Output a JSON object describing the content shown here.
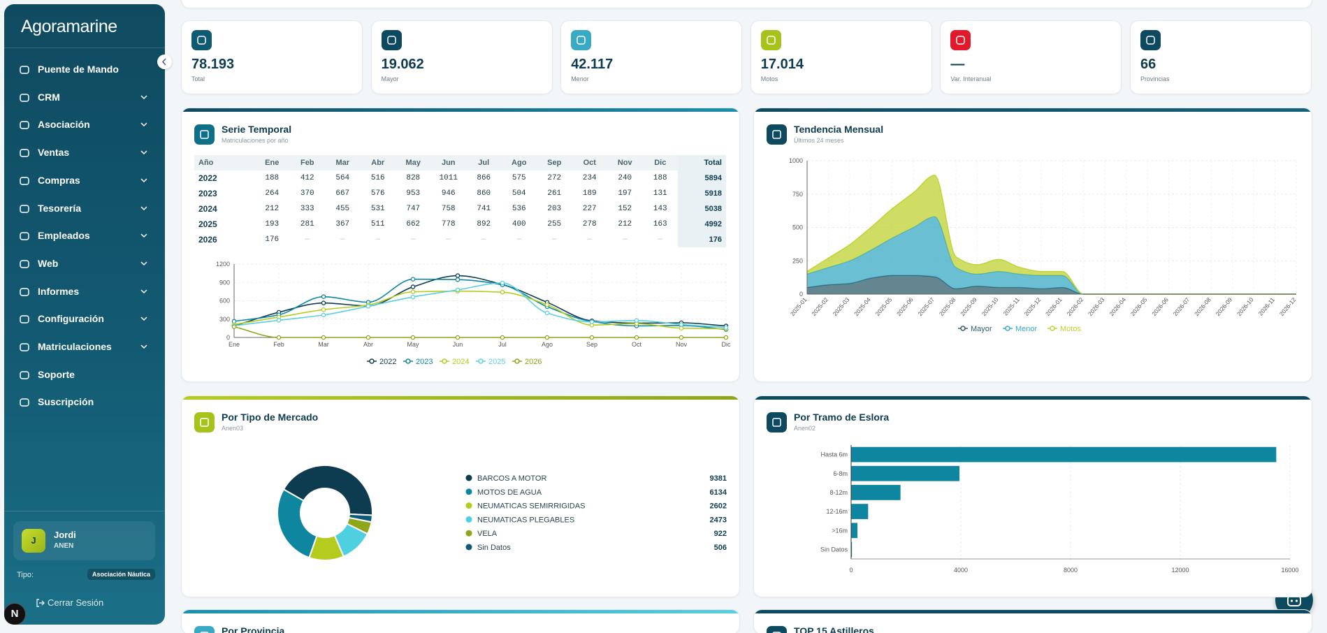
{
  "sidebar": {
    "brand": "Agoramarine",
    "nav": [
      {
        "label": "Puente de Mando",
        "expandable": false
      },
      {
        "label": "CRM",
        "expandable": true
      },
      {
        "label": "Asociación",
        "expandable": true
      },
      {
        "label": "Ventas",
        "expandable": true
      },
      {
        "label": "Compras",
        "expandable": true
      },
      {
        "label": "Tesorería",
        "expandable": true
      },
      {
        "label": "Empleados",
        "expandable": true
      },
      {
        "label": "Web",
        "expandable": true
      },
      {
        "label": "Informes",
        "expandable": true
      },
      {
        "label": "Configuración",
        "expandable": true
      },
      {
        "label": "Matriculaciones",
        "expandable": true
      },
      {
        "label": "Soporte",
        "expandable": false
      },
      {
        "label": "Suscripción",
        "expandable": false
      }
    ],
    "user": {
      "initial": "J",
      "name": "Jordi",
      "org": "ANEN"
    },
    "tipo_label": "Tipo:",
    "tipo": "Asociación Náutica",
    "logout": "Cerrar Sesión",
    "badge": "N"
  },
  "stats": [
    {
      "value": "78.193",
      "label": "Total",
      "color": "#0e5a70"
    },
    {
      "value": "19.062",
      "label": "Mayor",
      "color": "#0d4a5f"
    },
    {
      "value": "42.117",
      "label": "Menor",
      "color": "#3aa9c4"
    },
    {
      "value": "17.014",
      "label": "Motos",
      "color": "#a8c21c"
    },
    {
      "value": "—",
      "label": "Var. Interanual",
      "color": "#e0192b"
    },
    {
      "value": "66",
      "label": "Provincias",
      "color": "#0d4a5f"
    }
  ],
  "panels": {
    "serie_temporal": {
      "title": "Serie Temporal",
      "subtitle": "Matriculaciones por año",
      "table": {
        "header": [
          "Año",
          "Ene",
          "Feb",
          "Mar",
          "Abr",
          "May",
          "Jun",
          "Jul",
          "Ago",
          "Sep",
          "Oct",
          "Nov",
          "Dic",
          "Total"
        ],
        "rows": [
          [
            2022,
            188,
            412,
            564,
            516,
            828,
            1011,
            866,
            575,
            272,
            234,
            240,
            188,
            5894
          ],
          [
            2023,
            264,
            370,
            667,
            576,
            953,
            946,
            860,
            504,
            261,
            189,
            197,
            131,
            5918
          ],
          [
            2024,
            212,
            333,
            455,
            531,
            747,
            758,
            741,
            536,
            203,
            227,
            152,
            143,
            5038
          ],
          [
            2025,
            193,
            281,
            367,
            511,
            662,
            778,
            892,
            400,
            255,
            278,
            212,
            163,
            4992
          ],
          [
            2026,
            176,
            "—",
            "—",
            "—",
            "—",
            "—",
            "—",
            "—",
            "—",
            "—",
            "—",
            "—",
            176
          ]
        ]
      },
      "chart": {
        "type": "line",
        "categories": [
          "Ene",
          "Feb",
          "Mar",
          "Abr",
          "May",
          "Jun",
          "Jul",
          "Ago",
          "Sep",
          "Oct",
          "Nov",
          "Dic"
        ],
        "ylim": [
          0,
          1200
        ],
        "yticks": [
          0,
          300,
          600,
          900,
          {
            "value": 1200,
            "label": "1200"
          }
        ],
        "grid": true,
        "series": [
          {
            "name": "2022",
            "color": "#0d3b4f",
            "values": [
              188,
              412,
              564,
              516,
              828,
              1011,
              866,
              575,
              272,
              234,
              240,
              188
            ]
          },
          {
            "name": "2023",
            "color": "#0e86a0",
            "values": [
              264,
              370,
              667,
              576,
              953,
              946,
              860,
              504,
              261,
              189,
              197,
              131
            ]
          },
          {
            "name": "2024",
            "color": "#b5cc1f",
            "values": [
              212,
              333,
              455,
              531,
              747,
              758,
              741,
              536,
              203,
              227,
              152,
              143
            ]
          },
          {
            "name": "2025",
            "color": "#5bcfe0",
            "values": [
              193,
              281,
              367,
              511,
              662,
              778,
              892,
              400,
              255,
              278,
              212,
              163
            ]
          },
          {
            "name": "2026",
            "color": "#8da61a",
            "values": [
              176,
              0,
              0,
              0,
              0,
              0,
              0,
              0,
              0,
              0,
              0,
              0
            ]
          }
        ]
      }
    },
    "tendencia_mensual": {
      "title": "Tendencia Mensual",
      "subtitle": "Últimos 24 meses",
      "chart": {
        "type": "area",
        "stacked": true,
        "categories": [
          "2025-01",
          "2025-02",
          "2025-03",
          "2025-04",
          "2025-05",
          "2025-06",
          "2025-07",
          "2025-08",
          "2025-09",
          "2025-10",
          "2025-11",
          "2025-12",
          "2026-01",
          "2026-02",
          "2026-03",
          "2026-04",
          "2026-05",
          "2026-06",
          "2026-07",
          "2026-08",
          "2026-09",
          "2026-10",
          "2026-11",
          "2026-12"
        ],
        "ylim": [
          0,
          1000
        ],
        "yticks": [
          0,
          250,
          500,
          750,
          1000
        ],
        "grid": true,
        "series": [
          {
            "name": "Mayor",
            "color": "#2f5d6b",
            "values": [
              50,
              70,
              80,
              120,
              140,
              140,
              130,
              40,
              60,
              50,
              50,
              40,
              50,
              0,
              0,
              0,
              0,
              0,
              0,
              0,
              0,
              0,
              0,
              0
            ]
          },
          {
            "name": "Menor",
            "color": "#3aa9c4",
            "values": [
              100,
              130,
              170,
              210,
              280,
              360,
              450,
              160,
              90,
              120,
              100,
              100,
              90,
              0,
              0,
              0,
              0,
              0,
              0,
              0,
              0,
              0,
              0,
              0
            ]
          },
          {
            "name": "Motos",
            "color": "#bfd230",
            "values": [
              20,
              70,
              120,
              170,
              220,
              260,
              310,
              80,
              70,
              90,
              50,
              30,
              30,
              0,
              0,
              0,
              0,
              0,
              0,
              0,
              0,
              0,
              0,
              0
            ]
          }
        ]
      }
    },
    "tipo_mercado": {
      "title": "Por Tipo de Mercado",
      "subtitle": "Anen03",
      "chart": {
        "type": "pie",
        "donut": true,
        "categories": [
          "BARCOS A MOTOR",
          "MOTOS DE AGUA",
          "NEUMATICAS SEMIRRIGIDAS",
          "NEUMATICAS PLEGABLES",
          "VELA",
          "Sin Datos"
        ],
        "values": [
          9381,
          6134,
          2602,
          2473,
          922,
          506
        ],
        "colors": [
          "#0d3b4f",
          "#0e86a0",
          "#b5cc1f",
          "#4fd0e0",
          "#8da61a",
          "#0e5a78"
        ]
      }
    },
    "tramo_eslora": {
      "title": "Por Tramo de Eslora",
      "subtitle": "Anen02",
      "chart": {
        "type": "bar",
        "orientation": "horizontal",
        "categories": [
          "Hasta 6m",
          "6-8m",
          "8-12m",
          "12-16m",
          ">16m",
          "Sin Datos"
        ],
        "values": [
          15500,
          3950,
          1800,
          620,
          230,
          30
        ],
        "color": "#0e86a0",
        "xlim": [
          0,
          16000
        ],
        "xticks": [
          0,
          4000,
          8000,
          12000,
          16000
        ],
        "grid": true
      }
    },
    "por_provincia": {
      "title": "Por Provincia"
    },
    "top_astilleros": {
      "title": "TOP 15 Astilleros"
    }
  }
}
